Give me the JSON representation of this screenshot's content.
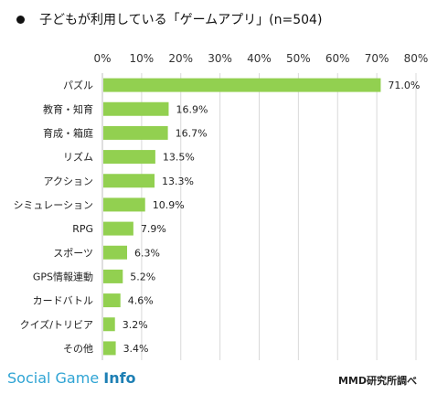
{
  "title": "子どもが利用している「ゲームアプリ」(n=504)",
  "chart_data": {
    "type": "bar",
    "orientation": "horizontal",
    "categories": [
      "パズル",
      "教育・知育",
      "育成・箱庭",
      "リズム",
      "アクション",
      "シミュレーション",
      "RPG",
      "スポーツ",
      "GPS情報連動",
      "カードバトル",
      "クイズ/トリビア",
      "その他"
    ],
    "values": [
      71.0,
      16.9,
      16.7,
      13.5,
      13.3,
      10.9,
      7.9,
      6.3,
      5.2,
      4.6,
      3.2,
      3.4
    ],
    "value_labels": [
      "71.0%",
      "16.9%",
      "16.7%",
      "13.5%",
      "13.3%",
      "10.9%",
      "7.9%",
      "6.3%",
      "5.2%",
      "4.6%",
      "3.2%",
      "3.4%"
    ],
    "xlim": [
      0,
      80
    ],
    "x_ticks": [
      "0%",
      "10%",
      "20%",
      "30%",
      "40%",
      "50%",
      "60%",
      "70%",
      "80%"
    ],
    "grid": true,
    "bar_color": "#92d050",
    "grid_color": "#d9d9d9"
  },
  "footer": {
    "brand_main": "Social Game ",
    "brand_strong": "Info",
    "source": "MMD研究所調べ"
  }
}
